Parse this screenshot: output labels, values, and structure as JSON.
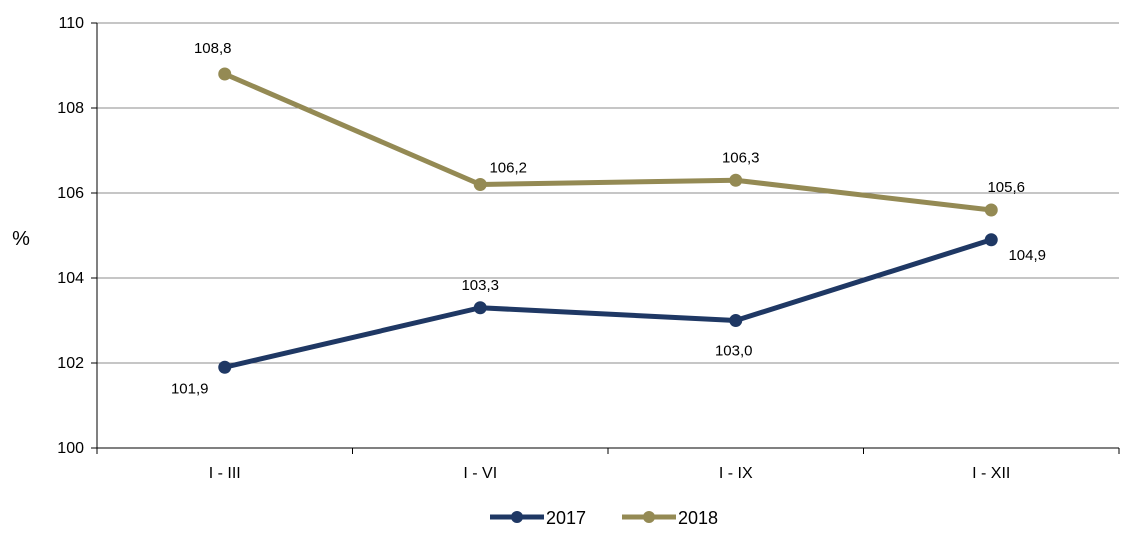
{
  "chart_data": {
    "type": "line",
    "title": "",
    "xlabel": "",
    "ylabel": "%",
    "categories": [
      "I - III",
      "I - VI",
      "I - IX",
      "I - XII"
    ],
    "ylim": [
      100,
      110
    ],
    "yticks": [
      100,
      102,
      104,
      106,
      108,
      110
    ],
    "grid": true,
    "legend_position": "bottom",
    "series": [
      {
        "name": "2017",
        "values": [
          101.9,
          103.3,
          103.0,
          104.9
        ],
        "labels": [
          "101,9",
          "103,3",
          "103,0",
          "104,9"
        ],
        "color": "#1f3864"
      },
      {
        "name": "2018",
        "values": [
          108.8,
          106.2,
          106.3,
          105.6
        ],
        "labels": [
          "108,8",
          "106,2",
          "106,3",
          "105,6"
        ],
        "color": "#948a54"
      }
    ]
  }
}
